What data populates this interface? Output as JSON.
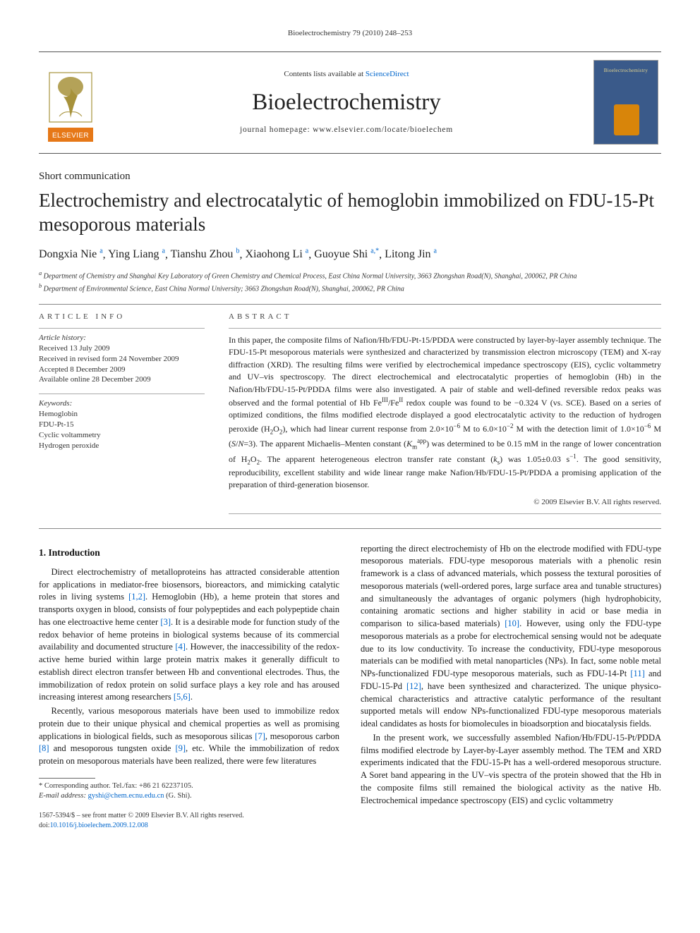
{
  "running_head": "Bioelectrochemistry 79 (2010) 248–253",
  "masthead": {
    "contents_prefix": "Contents lists available at ",
    "contents_link": "ScienceDirect",
    "journal": "Bioelectrochemistry",
    "homepage_prefix": "journal homepage: ",
    "homepage": "www.elsevier.com/locate/bioelechem",
    "publisher_logo_text": "ELSEVIER",
    "publisher_colors": {
      "tree": "#a7923b",
      "band": "#e67817",
      "text": "#e67817"
    }
  },
  "article": {
    "type": "Short communication",
    "title": "Electrochemistry and electrocatalytic of hemoglobin immobilized on FDU-15-Pt mesoporous materials",
    "authors_html_parts": [
      {
        "name": "Dongxia Nie",
        "sup": "a"
      },
      {
        "name": "Ying Liang",
        "sup": "a"
      },
      {
        "name": "Tianshu Zhou",
        "sup": "b"
      },
      {
        "name": "Xiaohong Li",
        "sup": "a"
      },
      {
        "name": "Guoyue Shi",
        "sup": "a,*",
        "star": true
      },
      {
        "name": "Litong Jin",
        "sup": "a"
      }
    ],
    "affiliations": [
      {
        "label": "a",
        "text": "Department of Chemistry and Shanghai Key Laboratory of Green Chemistry and Chemical Process, East China Normal University, 3663 Zhongshan Road(N), Shanghai, 200062, PR China"
      },
      {
        "label": "b",
        "text": "Department of Environmental Science, East China Normal University; 3663 Zhongshan Road(N), Shanghai, 200062, PR China"
      }
    ]
  },
  "article_info": {
    "label": "ARTICLE INFO",
    "history_hd": "Article history:",
    "history": [
      "Received 13 July 2009",
      "Received in revised form 24 November 2009",
      "Accepted 8 December 2009",
      "Available online 28 December 2009"
    ],
    "keywords_hd": "Keywords:",
    "keywords": [
      "Hemoglobin",
      "FDU-Pt-15",
      "Cyclic voltammetry",
      "Hydrogen peroxide"
    ]
  },
  "abstract": {
    "label": "ABSTRACT",
    "text": "In this paper, the composite films of Nafion/Hb/FDU-Pt-15/PDDA were constructed by layer-by-layer assembly technique. The FDU-15-Pt mesoporous materials were synthesized and characterized by transmission electron microscopy (TEM) and X-ray diffraction (XRD). The resulting films were verified by electrochemical impedance spectroscopy (EIS), cyclic voltammetry and UV–vis spectroscopy. The direct electrochemical and electrocatalytic properties of hemoglobin (Hb) in the Nafion/Hb/FDU-15-Pt/PDDA films were also investigated. A pair of stable and well-defined reversible redox peaks was observed and the formal potential of Hb FeIII/FeII redox couple was found to be −0.324 V (vs. SCE). Based on a series of optimized conditions, the films modified electrode displayed a good electrocatalytic activity to the reduction of hydrogen peroxide (H2O2), which had linear current response from 2.0×10−6 M to 6.0×10−2 M with the detection limit of 1.0×10−6 M (S/N=3). The apparent Michaelis–Menten constant (Kmapp) was determined to be 0.15 mM in the range of lower concentration of H2O2. The apparent heterogeneous electron transfer rate constant (ks) was 1.05±0.03 s−1. The good sensitivity, reproducibility, excellent stability and wide linear range make Nafion/Hb/FDU-15-Pt/PDDA a promising application of the preparation of third-generation biosensor.",
    "copyright": "© 2009 Elsevier B.V. All rights reserved."
  },
  "body": {
    "h1": "1. Introduction",
    "para1": "Direct electrochemistry of metalloproteins has attracted considerable attention for applications in mediator-free biosensors, bioreactors, and mimicking catalytic roles in living systems [1,2]. Hemoglobin (Hb), a heme protein that stores and transports oxygen in blood, consists of four polypeptides and each polypeptide chain has one electroactive heme center [3]. It is a desirable mode for function study of the redox behavior of heme proteins in biological systems because of its commercial availability and documented structure [4]. However, the inaccessibility of the redox-active heme buried within large protein matrix makes it generally difficult to establish direct electron transfer between Hb and conventional electrodes. Thus, the immobilization of redox protein on solid surface plays a key role and has aroused increasing interest among researchers [5,6].",
    "para2": "Recently, various mesoporous materials have been used to immobilize redox protein due to their unique physical and chemical properties as well as promising applications in biological fields, such as mesoporous silicas [7], mesoporous carbon [8] and mesoporous tungsten oxide [9], etc. While the immobilization of redox protein on mesoporous materials have been realized, there were few literatures",
    "para3": "reporting the direct electrochemisty of Hb on the electrode modified with FDU-type mesoporous materials. FDU-type mesoporous materials with a phenolic resin framework is a class of advanced materials, which possess the textural porosities of mesoporous materials (well-ordered pores, large surface area and tunable structures) and simultaneously the advantages of organic polymers (high hydrophobicity, containing aromatic sections and higher stability in acid or base media in comparison to silica-based materials) [10]. However, using only the FDU-type mesoporous materials as a probe for electrochemical sensing would not be adequate due to its low conductivity. To increase the conductivity, FDU-type mesoporous materials can be modified with metal nanoparticles (NPs). In fact, some noble metal NPs-functionalized FDU-type mesoporous materials, such as FDU-14-Pt [11] and FDU-15-Pd [12], have been synthesized and characterized. The unique physico-chemical characteristics and attractive catalytic performance of the resultant supported metals will endow NPs-functionalized FDU-type mesoporous materials ideal candidates as hosts for biomolecules in bioadsorption and biocatalysis fields.",
    "para4": "In the present work, we successfully assembled Nafion/Hb/FDU-15-Pt/PDDA films modified electrode by Layer-by-Layer assembly method. The TEM and XRD experiments indicated that the FDU-15-Pt has a well-ordered mesoporous structure. A Soret band appearing in the UV–vis spectra of the protein showed that the Hb in the composite films still remained the biological activity as the native Hb. Electrochemical impedance spectroscopy (EIS) and cyclic voltammetry",
    "refs": {
      "r12": "[1,2]",
      "r3": "[3]",
      "r4": "[4]",
      "r56": "[5,6]",
      "r7": "[7]",
      "r8": "[8]",
      "r9": "[9]",
      "r10": "[10]",
      "r11": "[11]",
      "r12b": "[12]"
    }
  },
  "footnote": {
    "corr": "* Corresponding author. Tel./fax: +86 21 62237105.",
    "email_label": "E-mail address: ",
    "email": "gyshi@chem.ecnu.edu.cn",
    "email_who": " (G. Shi)."
  },
  "footer": {
    "line1": "1567-5394/$ – see front matter © 2009 Elsevier B.V. All rights reserved.",
    "doi_prefix": "doi:",
    "doi": "10.1016/j.bioelechem.2009.12.008"
  },
  "colors": {
    "link": "#0066cc",
    "text": "#1a1a1a",
    "rule": "#888888"
  }
}
